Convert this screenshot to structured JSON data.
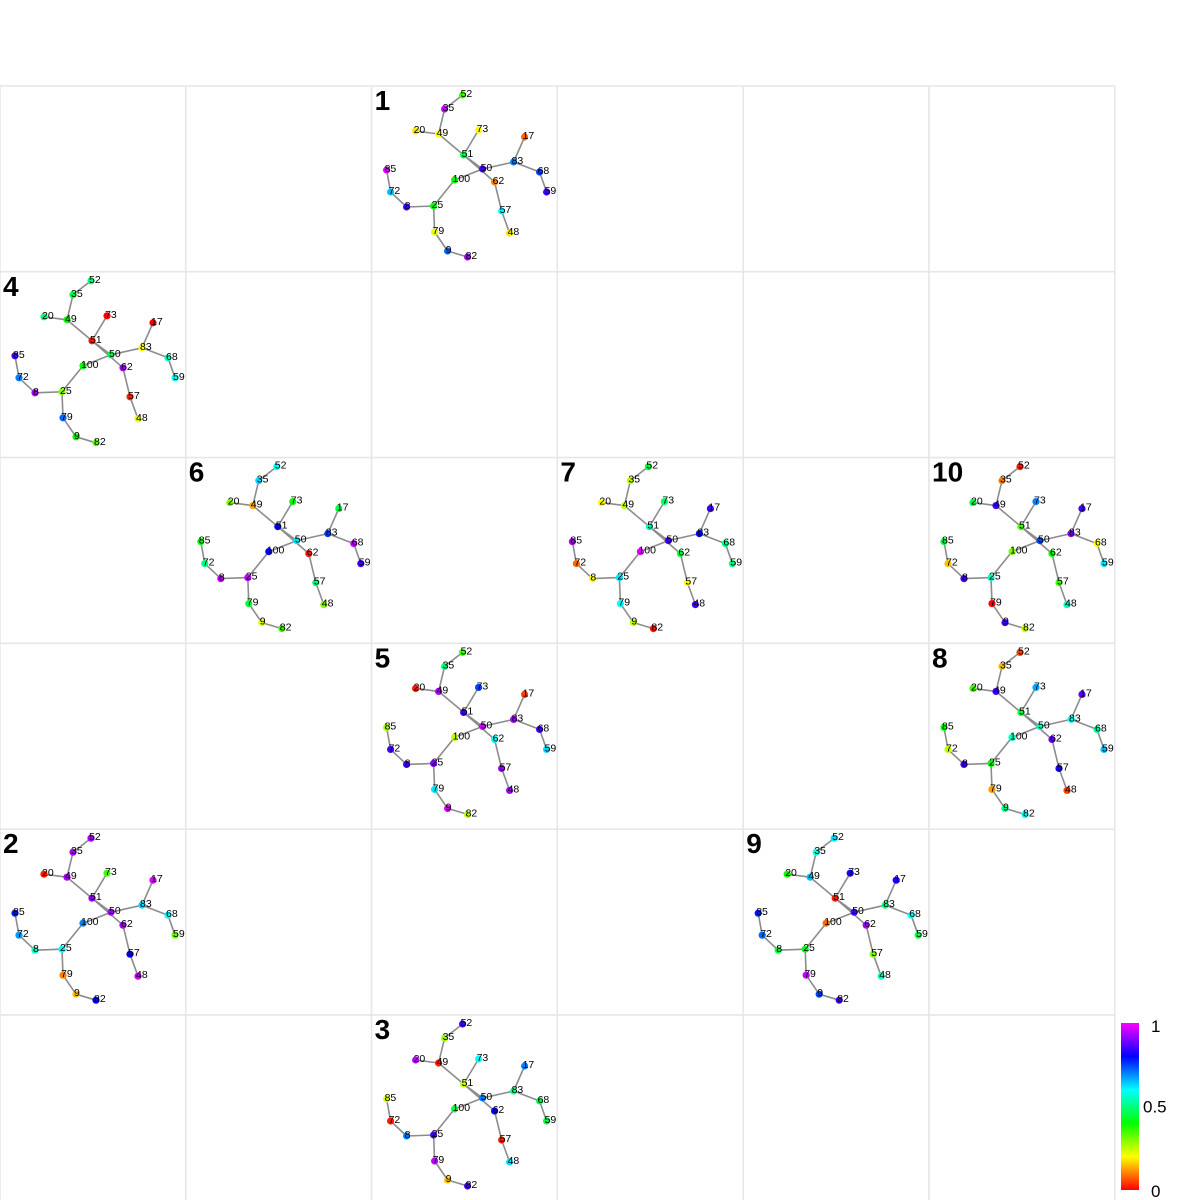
{
  "grid": {
    "rows": 6,
    "cols": 6
  },
  "graph": {
    "nodes": [
      {
        "id": "52"
      },
      {
        "id": "35"
      },
      {
        "id": "20"
      },
      {
        "id": "49"
      },
      {
        "id": "73"
      },
      {
        "id": "51"
      },
      {
        "id": "17"
      },
      {
        "id": "85"
      },
      {
        "id": "100"
      },
      {
        "id": "50"
      },
      {
        "id": "83"
      },
      {
        "id": "62"
      },
      {
        "id": "68"
      },
      {
        "id": "59"
      },
      {
        "id": "72"
      },
      {
        "id": "8"
      },
      {
        "id": "25"
      },
      {
        "id": "57"
      },
      {
        "id": "48"
      },
      {
        "id": "79"
      },
      {
        "id": "9"
      },
      {
        "id": "82"
      }
    ],
    "edges": [
      [
        "52",
        "35"
      ],
      [
        "35",
        "49"
      ],
      [
        "20",
        "49"
      ],
      [
        "49",
        "51"
      ],
      [
        "73",
        "51"
      ],
      [
        "51",
        "50"
      ],
      [
        "51",
        "62"
      ],
      [
        "50",
        "100"
      ],
      [
        "50",
        "83"
      ],
      [
        "83",
        "17"
      ],
      [
        "83",
        "68"
      ],
      [
        "68",
        "59"
      ],
      [
        "100",
        "25"
      ],
      [
        "25",
        "8"
      ],
      [
        "8",
        "72"
      ],
      [
        "72",
        "85"
      ],
      [
        "25",
        "79"
      ],
      [
        "79",
        "9"
      ],
      [
        "9",
        "82"
      ],
      [
        "62",
        "57"
      ],
      [
        "57",
        "48"
      ]
    ]
  },
  "panels": [
    {
      "label": "1",
      "row": 0,
      "col": 2,
      "values": {
        "52": 0.35,
        "35": 0.95,
        "20": 0.18,
        "49": 0.2,
        "73": 0.2,
        "51": 0.45,
        "17": 0.08,
        "85": 0.97,
        "100": 0.4,
        "50": 0.85,
        "83": 0.7,
        "62": 0.1,
        "68": 0.75,
        "59": 0.85,
        "72": 0.65,
        "8": 0.85,
        "25": 0.4,
        "57": 0.6,
        "48": 0.18,
        "79": 0.22,
        "9": 0.72,
        "82": 0.93
      }
    },
    {
      "label": "4",
      "row": 1,
      "col": 0,
      "values": {
        "52": 0.5,
        "35": 0.45,
        "20": 0.5,
        "49": 0.4,
        "73": 0.0,
        "51": 0.02,
        "17": 0.0,
        "85": 0.85,
        "100": 0.4,
        "50": 0.45,
        "83": 0.2,
        "62": 0.93,
        "68": 0.55,
        "59": 0.6,
        "72": 0.7,
        "8": 0.93,
        "25": 0.3,
        "57": 0.03,
        "48": 0.22,
        "79": 0.72,
        "9": 0.4,
        "82": 0.32
      }
    },
    {
      "label": "6",
      "row": 2,
      "col": 1,
      "values": {
        "52": 0.6,
        "35": 0.63,
        "20": 0.3,
        "49": 0.13,
        "73": 0.4,
        "51": 0.8,
        "17": 0.45,
        "85": 0.4,
        "100": 0.8,
        "50": 0.62,
        "83": 0.75,
        "62": 0.02,
        "68": 0.95,
        "59": 0.85,
        "72": 0.5,
        "8": 0.95,
        "25": 0.95,
        "57": 0.5,
        "48": 0.3,
        "79": 0.45,
        "9": 0.22,
        "82": 0.35
      }
    },
    {
      "label": "7",
      "row": 2,
      "col": 3,
      "values": {
        "52": 0.45,
        "35": 0.25,
        "20": 0.2,
        "49": 0.25,
        "73": 0.48,
        "51": 0.55,
        "17": 0.85,
        "85": 0.93,
        "100": 0.97,
        "50": 0.85,
        "83": 0.8,
        "62": 0.45,
        "68": 0.5,
        "59": 0.5,
        "72": 0.08,
        "8": 0.2,
        "25": 0.62,
        "57": 0.2,
        "48": 0.85,
        "79": 0.6,
        "9": 0.25,
        "82": 0.02
      }
    },
    {
      "label": "10",
      "row": 2,
      "col": 5,
      "values": {
        "52": 0.02,
        "35": 0.1,
        "20": 0.45,
        "49": 0.85,
        "73": 0.7,
        "51": 0.35,
        "17": 0.85,
        "85": 0.45,
        "100": 0.3,
        "50": 0.75,
        "83": 0.9,
        "62": 0.4,
        "68": 0.2,
        "59": 0.62,
        "72": 0.15,
        "8": 0.85,
        "25": 0.55,
        "57": 0.35,
        "48": 0.55,
        "79": 0.0,
        "9": 0.85,
        "82": 0.25
      }
    },
    {
      "label": "5",
      "row": 3,
      "col": 2,
      "values": {
        "52": 0.35,
        "35": 0.5,
        "20": 0.02,
        "49": 0.93,
        "73": 0.75,
        "51": 0.85,
        "17": 0.05,
        "85": 0.27,
        "100": 0.25,
        "50": 0.96,
        "83": 0.93,
        "62": 0.6,
        "68": 0.85,
        "59": 0.63,
        "72": 0.85,
        "8": 0.85,
        "25": 0.9,
        "57": 0.92,
        "48": 0.93,
        "79": 0.62,
        "9": 0.97,
        "82": 0.25
      }
    },
    {
      "label": "8",
      "row": 3,
      "col": 5,
      "values": {
        "52": 0.05,
        "35": 0.15,
        "20": 0.35,
        "49": 0.85,
        "73": 0.67,
        "51": 0.45,
        "17": 0.87,
        "85": 0.4,
        "100": 0.55,
        "50": 0.55,
        "83": 0.6,
        "62": 0.88,
        "68": 0.52,
        "59": 0.65,
        "72": 0.25,
        "8": 0.85,
        "25": 0.4,
        "57": 0.82,
        "48": 0.05,
        "79": 0.12,
        "9": 0.5,
        "82": 0.6
      }
    },
    {
      "label": "2",
      "row": 4,
      "col": 0,
      "values": {
        "52": 0.93,
        "35": 0.93,
        "20": 0.02,
        "49": 0.93,
        "73": 0.35,
        "51": 0.92,
        "17": 0.97,
        "85": 0.78,
        "100": 0.7,
        "50": 0.93,
        "83": 0.63,
        "62": 0.93,
        "68": 0.6,
        "59": 0.32,
        "72": 0.68,
        "8": 0.55,
        "25": 0.6,
        "57": 0.8,
        "48": 0.96,
        "79": 0.1,
        "9": 0.15,
        "82": 0.8
      }
    },
    {
      "label": "9",
      "row": 4,
      "col": 4,
      "values": {
        "52": 0.62,
        "35": 0.58,
        "20": 0.4,
        "49": 0.65,
        "73": 0.82,
        "51": 0.02,
        "17": 0.82,
        "85": 0.78,
        "100": 0.08,
        "50": 0.85,
        "83": 0.5,
        "62": 0.93,
        "68": 0.6,
        "59": 0.45,
        "72": 0.72,
        "8": 0.45,
        "25": 0.42,
        "57": 0.3,
        "48": 0.55,
        "79": 0.95,
        "9": 0.75,
        "82": 0.85
      }
    },
    {
      "label": "3",
      "row": 5,
      "col": 2,
      "values": {
        "52": 0.85,
        "35": 0.28,
        "20": 0.95,
        "49": 0.02,
        "73": 0.6,
        "51": 0.25,
        "17": 0.7,
        "85": 0.23,
        "100": 0.45,
        "50": 0.7,
        "83": 0.5,
        "62": 0.8,
        "68": 0.45,
        "59": 0.45,
        "72": 0.02,
        "8": 0.7,
        "25": 0.85,
        "57": 0.02,
        "48": 0.62,
        "79": 0.95,
        "9": 0.15,
        "82": 0.85
      }
    }
  ],
  "colorbar": {
    "min_label": "0",
    "mid_label": "0.5",
    "max_label": "1",
    "stops": [
      "#ff0000",
      "#ffff00",
      "#00ff00",
      "#00ffff",
      "#0000ff",
      "#ff00ff"
    ]
  }
}
